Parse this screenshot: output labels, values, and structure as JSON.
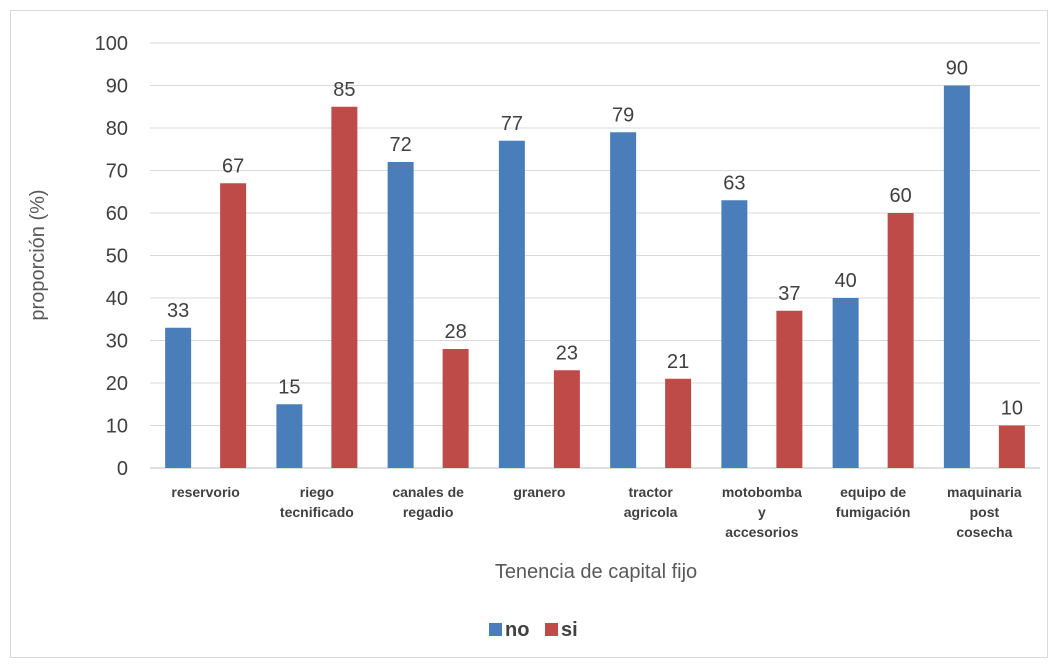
{
  "chart_data": {
    "type": "bar",
    "categories": [
      [
        "reservorio"
      ],
      [
        "riego",
        "tecnificado"
      ],
      [
        "canales de",
        "regadio"
      ],
      [
        "granero"
      ],
      [
        "tractor",
        "agricola"
      ],
      [
        "motobomba",
        "y",
        "accesorios"
      ],
      [
        "equipo de",
        "fumigación"
      ],
      [
        "maquinaria",
        "post",
        "cosecha"
      ]
    ],
    "series": [
      {
        "name": "no",
        "color": "#4a7ebb",
        "values": [
          33,
          15,
          72,
          77,
          79,
          63,
          40,
          90
        ]
      },
      {
        "name": "si",
        "color": "#be4b48",
        "values": [
          67,
          85,
          28,
          23,
          21,
          37,
          60,
          10
        ]
      }
    ],
    "xlabel": "Tenencia de capital fijo",
    "ylabel": "proporción (%)",
    "ylim": [
      0,
      100
    ],
    "yticks": [
      "0",
      "10",
      "20",
      "30",
      "40",
      "50",
      "60",
      "70",
      "80",
      "90",
      "100"
    ],
    "grid": true,
    "legend": "bottom"
  }
}
